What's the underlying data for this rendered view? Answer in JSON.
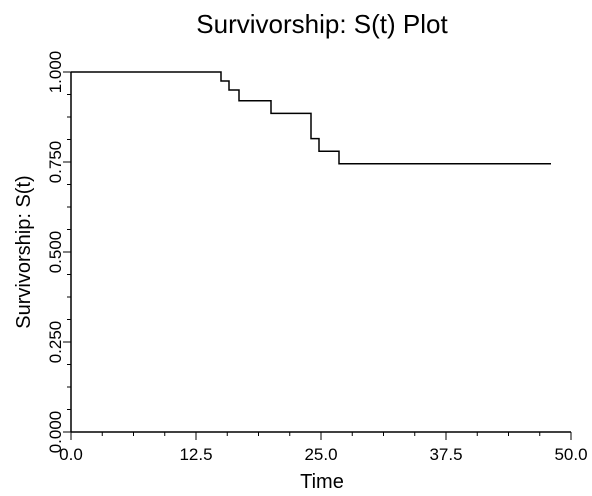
{
  "chart_data": {
    "type": "line",
    "step": true,
    "title": "Survivorship: S(t) Plot",
    "xlabel": "Time",
    "ylabel": "Survivorship: S(t)",
    "xlim": [
      0,
      50
    ],
    "ylim": [
      0,
      1
    ],
    "x_ticks": [
      0.0,
      12.5,
      25.0,
      37.5,
      50.0
    ],
    "x_tick_labels": [
      "0.0",
      "12.5",
      "25.0",
      "37.5",
      "50.0"
    ],
    "y_ticks": [
      0,
      0.25,
      0.5,
      0.75,
      1.0
    ],
    "y_tick_labels": [
      "0.000",
      "0.250",
      "0.500",
      "0.750",
      "1.000"
    ],
    "minor_ticks_per_major": 4,
    "grid": false,
    "series": [
      {
        "x": [
          0,
          15.0,
          15.8,
          16.8,
          20.0,
          24.0,
          24.8,
          26.8,
          48.0
        ],
        "y": [
          1.0,
          0.975,
          0.95,
          0.92,
          0.885,
          0.815,
          0.78,
          0.745,
          0.745
        ]
      }
    ],
    "colors": {
      "line": "#000000",
      "axis": "#000000"
    }
  }
}
